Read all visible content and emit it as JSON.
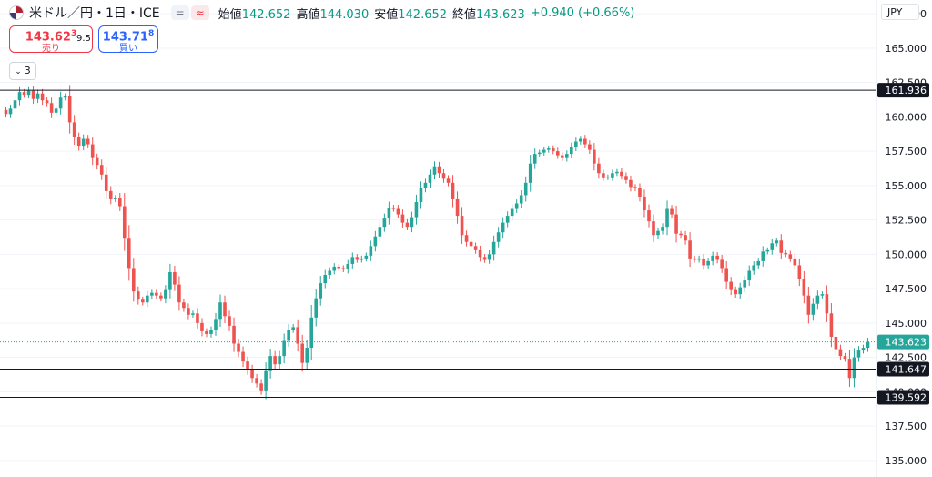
{
  "header": {
    "symbol": "米ドル／円・1日・ICE",
    "pill_left": "=",
    "pill_right": "≈",
    "open_label": "始値",
    "open": "142.652",
    "high_label": "高値",
    "high": "144.030",
    "low_label": "安値",
    "low": "142.652",
    "close_label": "終値",
    "close": "143.623",
    "change": "+0.940 (+0.66%)"
  },
  "trade": {
    "sell_price": "143.62",
    "sell_sup": "3",
    "sell_label": "売り",
    "spread": "9.5",
    "buy_price": "143.71",
    "buy_sup": "8",
    "buy_label": "買い"
  },
  "collapse": {
    "label": "3"
  },
  "currency": "JPY",
  "colors": {
    "up": "#26a69a",
    "down": "#ef5350",
    "line": "#131722",
    "grid": "#f0f3fa"
  },
  "chart_data": {
    "type": "candlestick",
    "ylim": [
      133.8,
      168.5
    ],
    "yticks": [
      "135.000",
      "137.500",
      "140.000",
      "142.500",
      "145.000",
      "147.500",
      "150.000",
      "152.500",
      "155.000",
      "157.500",
      "160.000",
      "162.500",
      "165.000",
      "167.500"
    ],
    "horizontal_lines": [
      {
        "value": 161.936,
        "label": "161.936"
      },
      {
        "value": 141.647,
        "label": "141.647"
      },
      {
        "value": 139.592,
        "label": "139.592"
      }
    ],
    "last_price": {
      "value": 143.623,
      "label": "143.623"
    },
    "closes": [
      160.2,
      160.6,
      161.2,
      161.8,
      161.6,
      161.9,
      161.3,
      161.7,
      161.2,
      161.0,
      160.3,
      160.6,
      161.4,
      161.5,
      159.6,
      158.5,
      157.9,
      158.4,
      158.0,
      157.0,
      156.5,
      155.8,
      154.6,
      154.0,
      154.1,
      153.5,
      151.2,
      149.0,
      147.3,
      146.7,
      146.5,
      147.0,
      147.2,
      147.0,
      146.8,
      147.4,
      148.7,
      147.8,
      146.5,
      146.1,
      145.6,
      145.7,
      145.0,
      144.4,
      144.2,
      144.5,
      145.3,
      146.5,
      145.5,
      144.8,
      143.5,
      142.9,
      142.2,
      141.6,
      141.0,
      140.6,
      140.1,
      141.5,
      142.6,
      142.0,
      142.6,
      143.7,
      144.5,
      144.7,
      143.5,
      142.1,
      143.2,
      145.4,
      146.8,
      147.9,
      148.5,
      148.8,
      149.1,
      149.0,
      148.9,
      149.3,
      149.8,
      149.6,
      149.7,
      149.9,
      150.6,
      151.3,
      152.0,
      152.6,
      153.4,
      153.3,
      152.9,
      152.3,
      152.0,
      152.7,
      153.8,
      154.8,
      155.2,
      155.8,
      156.4,
      155.9,
      155.5,
      155.2,
      154.0,
      152.8,
      151.4,
      150.9,
      150.6,
      150.3,
      149.8,
      149.6,
      150.0,
      150.9,
      151.6,
      152.3,
      152.8,
      153.3,
      153.7,
      154.3,
      155.2,
      156.6,
      157.3,
      157.4,
      157.6,
      157.7,
      157.5,
      157.2,
      157.0,
      157.3,
      157.8,
      158.2,
      158.4,
      158.0,
      157.6,
      156.6,
      155.9,
      155.6,
      155.6,
      155.9,
      156.0,
      155.7,
      155.4,
      154.9,
      154.8,
      154.2,
      153.2,
      152.4,
      151.4,
      151.7,
      152.0,
      153.3,
      152.9,
      151.5,
      151.4,
      151.0,
      149.7,
      149.6,
      149.7,
      149.2,
      149.5,
      149.9,
      149.6,
      149.0,
      148.0,
      147.4,
      147.1,
      147.6,
      148.1,
      148.8,
      149.2,
      149.5,
      150.2,
      150.3,
      150.8,
      151.0,
      150.1,
      150.0,
      149.7,
      149.2,
      148.2,
      147.0,
      145.6,
      146.4,
      147.0,
      147.1,
      145.7,
      144.0,
      143.1,
      142.6,
      142.4,
      141.0,
      142.5,
      143.0,
      143.2,
      143.623
    ],
    "candle_width_ratio": 0.72
  }
}
